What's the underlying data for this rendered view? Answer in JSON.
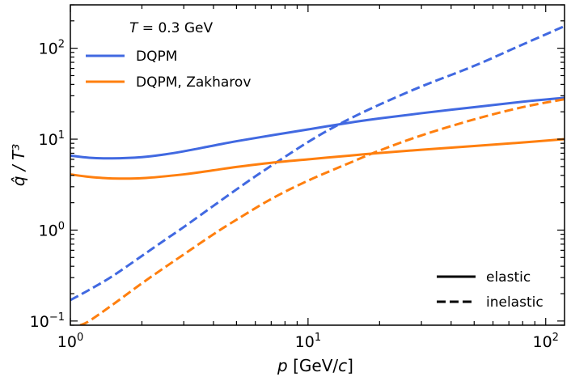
{
  "chart_data": {
    "type": "line",
    "scale": {
      "x": "log",
      "y": "log"
    },
    "xlim": [
      1,
      120
    ],
    "ylim": [
      0.09,
      300
    ],
    "xlabel": {
      "italic": "p",
      "rest": " [GeV/",
      "italic2": "c",
      "end": "]"
    },
    "ylabel": "q̂ / T³",
    "x_ticks": [
      {
        "value": 1,
        "base": "10",
        "exp": "0"
      },
      {
        "value": 10,
        "base": "10",
        "exp": "1"
      },
      {
        "value": 100,
        "base": "10",
        "exp": "2"
      }
    ],
    "y_ticks": [
      {
        "value": 0.1,
        "base": "10",
        "exp": "−1"
      },
      {
        "value": 1,
        "base": "10",
        "exp": "0"
      },
      {
        "value": 10,
        "base": "10",
        "exp": "1"
      },
      {
        "value": 100,
        "base": "10",
        "exp": "2"
      }
    ],
    "annotation": {
      "italic": "T",
      "rest": " = 0.3 GeV"
    },
    "colors": {
      "dqpm": "#4169E1",
      "zakharov": "#FF7F0E"
    },
    "legend_models": [
      {
        "label": "DQPM",
        "color": "#4169E1"
      },
      {
        "label": "DQPM, Zakharov",
        "color": "#FF7F0E"
      }
    ],
    "legend_styles": [
      {
        "label": "elastic",
        "dash": "solid"
      },
      {
        "label": "inelastic",
        "dash": "dashed"
      }
    ],
    "series": [
      {
        "name": "DQPM elastic",
        "color": "#4169E1",
        "dash": "solid",
        "x": [
          1,
          1.2,
          1.5,
          2,
          2.5,
          3,
          4,
          5,
          7,
          10,
          15,
          20,
          30,
          50,
          80,
          120
        ],
        "y": [
          6.6,
          6.25,
          6.15,
          6.35,
          6.8,
          7.35,
          8.5,
          9.5,
          11.0,
          12.8,
          15.2,
          16.9,
          19.3,
          22.5,
          25.8,
          28.5
        ]
      },
      {
        "name": "DQPM inelastic",
        "color": "#4169E1",
        "dash": "dashed",
        "x": [
          1,
          1.2,
          1.5,
          2,
          2.5,
          3,
          4,
          5,
          6,
          7,
          8,
          10,
          12,
          15,
          20,
          30,
          50,
          80,
          120
        ],
        "y": [
          0.17,
          0.22,
          0.31,
          0.52,
          0.78,
          1.08,
          1.85,
          2.8,
          3.9,
          5.1,
          6.4,
          9.3,
          12.3,
          16.8,
          24,
          38,
          64,
          110,
          175
        ]
      },
      {
        "name": "DQPM, Zakharov elastic",
        "color": "#FF7F0E",
        "dash": "solid",
        "x": [
          1,
          1.2,
          1.5,
          2,
          3,
          4,
          5,
          7,
          10,
          15,
          20,
          30,
          50,
          80,
          120
        ],
        "y": [
          4.1,
          3.85,
          3.7,
          3.72,
          4.1,
          4.55,
          4.95,
          5.5,
          6.0,
          6.6,
          7.05,
          7.65,
          8.4,
          9.2,
          10.0
        ]
      },
      {
        "name": "DQPM, Zakharov inelastic",
        "color": "#FF7F0E",
        "dash": "dashed",
        "x": [
          1.1,
          1.2,
          1.5,
          2,
          2.5,
          3,
          4,
          5,
          7,
          10,
          15,
          20,
          30,
          50,
          80,
          120
        ],
        "y": [
          0.09,
          0.1,
          0.15,
          0.26,
          0.39,
          0.54,
          0.9,
          1.3,
          2.2,
          3.5,
          5.5,
          7.5,
          11.0,
          16.5,
          22.5,
          27.5
        ]
      }
    ]
  }
}
